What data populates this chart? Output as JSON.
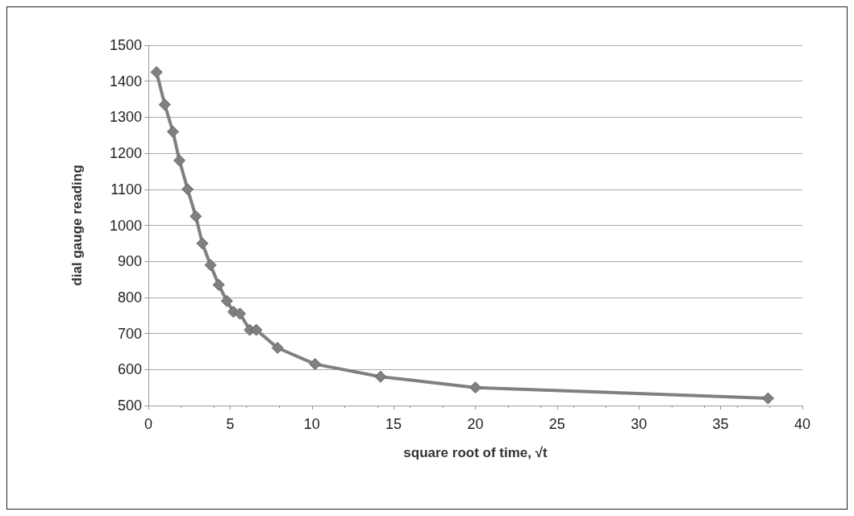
{
  "chart_data": {
    "type": "line",
    "xlabel": "square root of time, √t",
    "ylabel": "dial gauge reading",
    "series": [
      {
        "color": "#808080",
        "x": [
          0.5,
          1.0,
          1.5,
          1.9,
          2.4,
          2.9,
          3.3,
          3.8,
          4.3,
          4.8,
          5.2,
          5.6,
          6.2,
          6.6,
          7.9,
          10.2,
          14.2,
          20.0,
          37.9
        ],
        "values": [
          1425,
          1335,
          1260,
          1180,
          1100,
          1025,
          950,
          890,
          835,
          790,
          760,
          755,
          710,
          710,
          660,
          615,
          580,
          550,
          520
        ]
      }
    ],
    "xlim": [
      0,
      40
    ],
    "xticks": [
      0,
      5,
      10,
      15,
      20,
      25,
      30,
      35,
      40
    ],
    "ylim": [
      500,
      1500
    ],
    "yticks": [
      500,
      600,
      700,
      800,
      900,
      1000,
      1100,
      1200,
      1300,
      1400,
      1500
    ],
    "grid": "y",
    "marker": "diamond",
    "line_style": "solid"
  }
}
